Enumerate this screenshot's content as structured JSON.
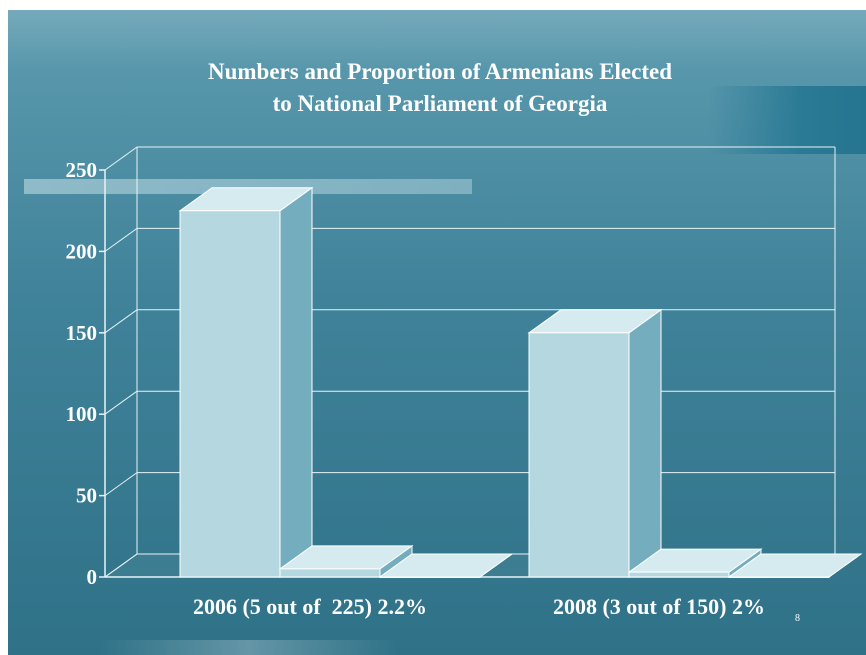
{
  "chart_data": {
    "type": "bar",
    "title_lines": [
      "Numbers and Proportion of Armenians Elected",
      "to National Parliament of Georgia"
    ],
    "categories": [
      "2006 (5 out of  225) 2.2%",
      "2008 (3 out of 150) 2%"
    ],
    "series": [
      {
        "values": [
          225,
          150
        ]
      },
      {
        "values": [
          5,
          3
        ]
      },
      {
        "values": [
          0,
          0
        ]
      }
    ],
    "y_ticks": [
      0,
      50,
      100,
      150,
      200,
      250
    ],
    "ylim": [
      0,
      250
    ],
    "grid": true,
    "three_d": true,
    "colors": {
      "front": "#b5d8e0",
      "side": "#74aebe",
      "top": "#d6ebf0",
      "edge": "#ffffff"
    }
  },
  "page_number": "8"
}
